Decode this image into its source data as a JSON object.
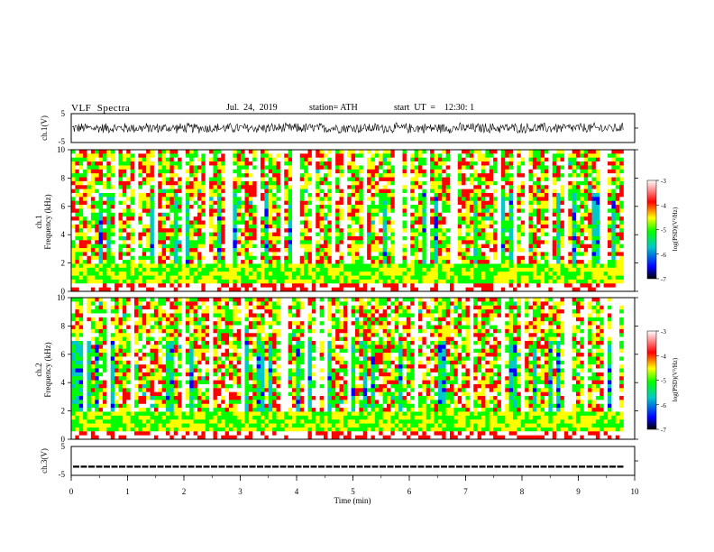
{
  "header": {
    "title": "VLF  Spectra",
    "date": "Jul.  24,  2019",
    "station": "station= ATH",
    "start_ut": "start  UT  =    12:30: 1"
  },
  "colors": {
    "frame": "#000000",
    "cmap": [
      "#000000",
      "#0000ff",
      "#00c8c8",
      "#00ff00",
      "#ffff00",
      "#ff0000",
      "#ffffff"
    ]
  },
  "chart_data": [
    {
      "type": "line",
      "panel": "ch1-waveform",
      "ylabel": "ch.1(V)",
      "ylim": [
        -5,
        5
      ],
      "yticks": [
        "5",
        "-5"
      ],
      "xlim": [
        0,
        10
      ],
      "note_signal": "noisy waveform roughly between -2 and 2 V over 0–9.8 min"
    },
    {
      "type": "heatmap",
      "panel": "ch1-spectrogram",
      "ylabel_top": "ch.1",
      "ylabel": "Frequency  (kHz)",
      "ylim": [
        0,
        10
      ],
      "yticks": [
        "0",
        "2",
        "4",
        "6",
        "8",
        "10"
      ],
      "xlim": [
        0,
        10
      ],
      "data_xmax": 9.8,
      "colorbar": {
        "label": "log(PSD)(V²/Hz)",
        "range": [
          -7,
          -3
        ],
        "ticks": [
          "-3",
          "-4",
          "-5",
          "-6",
          "-7"
        ]
      }
    },
    {
      "type": "heatmap",
      "panel": "ch2-spectrogram",
      "ylabel_top": "ch.2",
      "ylabel": "Frequency  (kHz)",
      "ylim": [
        0,
        10
      ],
      "yticks": [
        "0",
        "2",
        "4",
        "6",
        "8",
        "10"
      ],
      "xlim": [
        0,
        10
      ],
      "data_xmax": 9.8,
      "colorbar": {
        "label": "log(PSD)(V²/Hz)",
        "range": [
          -7,
          -3
        ],
        "ticks": [
          "-3",
          "-4",
          "-5",
          "-6",
          "-7"
        ]
      }
    },
    {
      "type": "line",
      "panel": "ch3-waveform",
      "ylabel": "ch.3(V)",
      "ylim": [
        -5,
        5
      ],
      "yticks": [
        "5",
        "-5"
      ],
      "xlim": [
        0,
        10
      ],
      "level": -2,
      "xlabel": "Time  (min)",
      "xticks": [
        "0",
        "1",
        "2",
        "3",
        "4",
        "5",
        "6",
        "7",
        "8",
        "9",
        "10"
      ]
    }
  ]
}
